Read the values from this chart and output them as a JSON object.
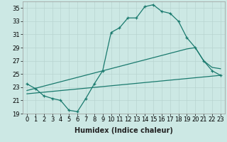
{
  "xlabel": "Humidex (Indice chaleur)",
  "bg_color": "#cce8e4",
  "line_color": "#1a7a6e",
  "ylim": [
    19,
    36
  ],
  "yticks": [
    19,
    21,
    23,
    25,
    27,
    29,
    31,
    33,
    35
  ],
  "xlim": [
    -0.5,
    23.5
  ],
  "xticks": [
    0,
    1,
    2,
    3,
    4,
    5,
    6,
    7,
    8,
    9,
    10,
    11,
    12,
    13,
    14,
    15,
    16,
    17,
    18,
    19,
    20,
    21,
    22,
    23
  ],
  "line1_x": [
    0,
    1,
    2,
    3,
    4,
    5,
    6,
    7,
    8,
    9,
    10,
    11,
    12,
    13,
    14,
    15,
    16,
    17,
    18,
    19,
    20,
    21,
    22,
    23
  ],
  "line1_y": [
    23.5,
    22.8,
    21.7,
    21.3,
    21.0,
    19.5,
    19.3,
    21.3,
    23.5,
    25.5,
    31.3,
    32.0,
    33.5,
    33.5,
    35.2,
    35.5,
    34.5,
    34.2,
    33.0,
    30.5,
    29.0,
    27.0,
    25.5,
    24.8
  ],
  "line2_x": [
    0,
    19,
    20,
    21,
    22,
    23
  ],
  "line2_y": [
    22.5,
    28.8,
    29.0,
    27.0,
    26.0,
    25.8
  ],
  "line3_x": [
    0,
    23
  ],
  "line3_y": [
    22.0,
    24.8
  ],
  "axis_fontsize": 7,
  "tick_fontsize": 6
}
